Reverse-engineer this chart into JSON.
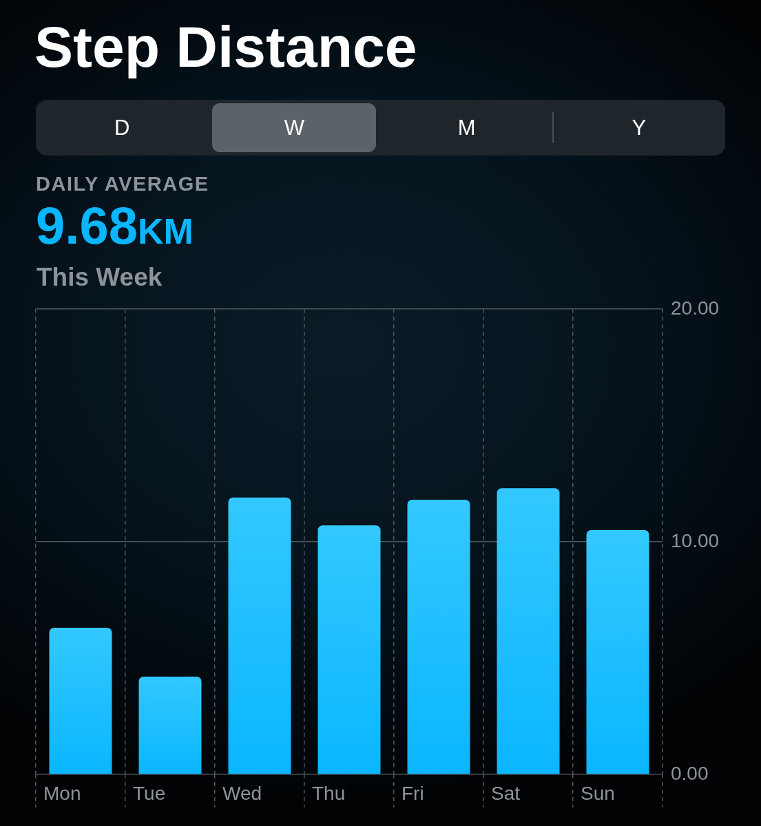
{
  "chart_data": {
    "type": "bar",
    "title": "Step Distance",
    "annotations": [
      "D",
      "W",
      "M",
      "Y",
      "DAILY AVERAGE",
      "9.68KM",
      "This Week"
    ],
    "categories": [
      "Mon",
      "Tue",
      "Wed",
      "Thu",
      "Fri",
      "Sat",
      "Sun"
    ],
    "values": [
      6.3,
      4.2,
      11.9,
      10.7,
      11.8,
      12.3,
      10.5
    ],
    "color": "#0ab6ff",
    "ylim": [
      0,
      20
    ],
    "yticks": [
      {
        "value": 0,
        "label": "0.00"
      },
      {
        "value": 10,
        "label": "10.00"
      },
      {
        "value": 20,
        "label": "20.00"
      }
    ],
    "grid": true
  }
}
